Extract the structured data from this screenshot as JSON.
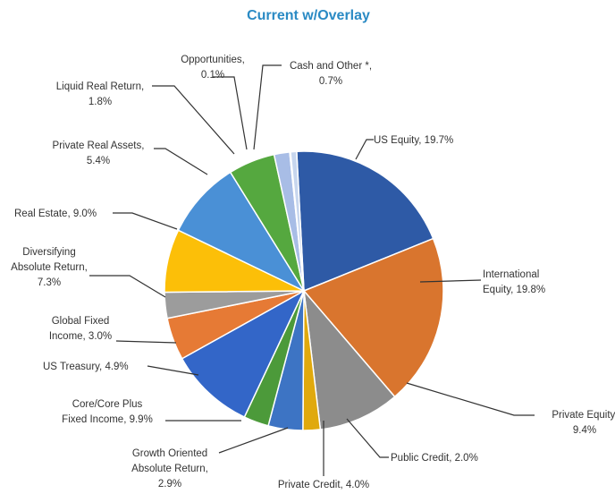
{
  "chart_data": {
    "type": "pie",
    "title": "Current w/Overlay",
    "start_angle_deg": -3,
    "direction": "clockwise",
    "slices": [
      {
        "name": "US Equity",
        "value_label": "19.7%",
        "value": 19.7,
        "color": "#2e5aa6"
      },
      {
        "name": "International Equity",
        "value_label": "19.8%",
        "value": 19.8,
        "color": "#d9752e"
      },
      {
        "name": "Private Equity",
        "value_label": "9.4%",
        "value": 9.4,
        "color": "#8c8c8c"
      },
      {
        "name": "Public Credit",
        "value_label": "2.0%",
        "value": 2.0,
        "color": "#e0a90d"
      },
      {
        "name": "Private Credit",
        "value_label": "4.0%",
        "value": 4.0,
        "color": "#3d74c4"
      },
      {
        "name": "Growth Oriented Absolute Return",
        "value_label": "2.9%",
        "value": 2.9,
        "color": "#4c9a3a"
      },
      {
        "name": "Core/Core Plus Fixed Income",
        "value_label": "9.9%",
        "value": 9.9,
        "color": "#3366c8"
      },
      {
        "name": "US Treasury",
        "value_label": "4.9%",
        "value": 4.9,
        "color": "#e67a35"
      },
      {
        "name": "Global Fixed Income",
        "value_label": "3.0%",
        "value": 3.0,
        "color": "#9c9c9c"
      },
      {
        "name": "Diversifying Absolute Return",
        "value_label": "7.3%",
        "value": 7.3,
        "color": "#fcbf08"
      },
      {
        "name": "Real Estate",
        "value_label": "9.0%",
        "value": 9.0,
        "color": "#4a90d6"
      },
      {
        "name": "Private Real Assets",
        "value_label": "5.4%",
        "value": 5.4,
        "color": "#55a83f"
      },
      {
        "name": "Liquid Real Return",
        "value_label": "1.8%",
        "value": 1.8,
        "color": "#a8bde6"
      },
      {
        "name": "Opportunities",
        "value_label": "0.1%",
        "value": 0.1,
        "color": "#bdbdbd"
      },
      {
        "name": "Cash and Other *",
        "value_label": "0.7%",
        "value": 0.7,
        "color": "#c7d6ee"
      }
    ],
    "labels": [
      {
        "lines": [
          "US Equity, 19.7%"
        ]
      },
      {
        "lines": [
          "International",
          "Equity, 19.8%"
        ]
      },
      {
        "lines": [
          "Private Equity,",
          "9.4%"
        ]
      },
      {
        "lines": [
          "Public Credit, 2.0%"
        ]
      },
      {
        "lines": [
          "Private Credit, 4.0%"
        ]
      },
      {
        "lines": [
          "Growth Oriented",
          "Absolute Return,",
          "2.9%"
        ]
      },
      {
        "lines": [
          "Core/Core Plus",
          "Fixed Income, 9.9%"
        ]
      },
      {
        "lines": [
          "US Treasury, 4.9%"
        ]
      },
      {
        "lines": [
          "Global Fixed",
          "Income, 3.0%"
        ]
      },
      {
        "lines": [
          "Diversifying",
          "Absolute Return,",
          "7.3%"
        ]
      },
      {
        "lines": [
          "Real Estate, 9.0%"
        ]
      },
      {
        "lines": [
          "Private Real Assets,",
          "5.4%"
        ]
      },
      {
        "lines": [
          "Liquid Real Return,",
          "1.8%"
        ]
      },
      {
        "lines": [
          "Opportunities,",
          "0.1%"
        ]
      },
      {
        "lines": [
          "Cash and Other *,",
          "0.7%"
        ]
      }
    ]
  }
}
